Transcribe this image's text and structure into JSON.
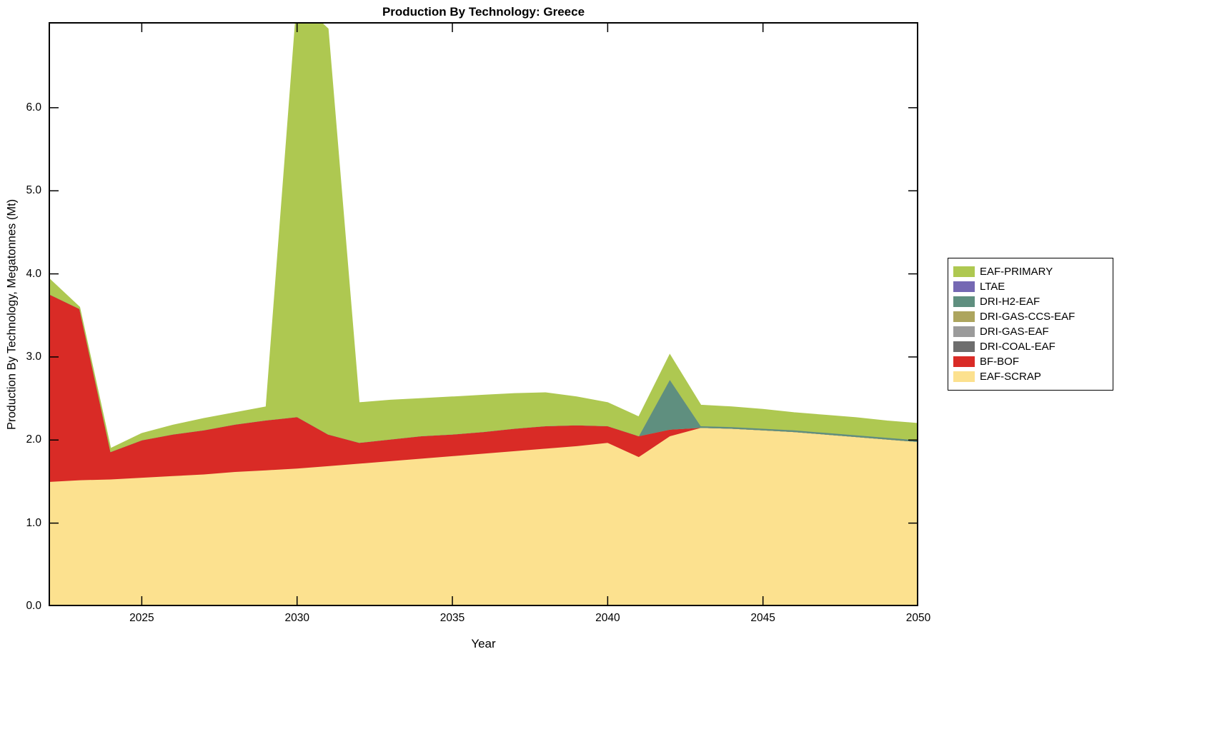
{
  "title": "Production By Technology: Greece",
  "xlabel": "Year",
  "ylabel": "Production By Technology, Megatonnes (Mt)",
  "chart_data": {
    "type": "area",
    "stacked": true,
    "title": "Production By Technology: Greece",
    "xlabel": "Year",
    "ylabel": "Production By Technology, Megatonnes (Mt)",
    "x_range": [
      2022,
      2050
    ],
    "y_range": [
      0,
      7.03
    ],
    "x_ticks": [
      2025,
      2030,
      2035,
      2040,
      2045,
      2050
    ],
    "y_ticks": [
      "0.0",
      "1.0",
      "2.0",
      "3.0",
      "4.0",
      "5.0",
      "6.0"
    ],
    "grid": false,
    "legend_position": "outside-right",
    "x": [
      2022,
      2023,
      2024,
      2025,
      2026,
      2027,
      2028,
      2029,
      2030,
      2031,
      2032,
      2033,
      2034,
      2035,
      2036,
      2037,
      2038,
      2039,
      2040,
      2041,
      2042,
      2043,
      2044,
      2045,
      2046,
      2047,
      2048,
      2049,
      2050
    ],
    "series": [
      {
        "name": "EAF-SCRAP",
        "color": "#fce18f",
        "values": [
          1.5,
          1.52,
          1.53,
          1.55,
          1.57,
          1.59,
          1.62,
          1.64,
          1.66,
          1.69,
          1.72,
          1.75,
          1.78,
          1.81,
          1.84,
          1.87,
          1.9,
          1.93,
          1.97,
          1.8,
          2.05,
          2.15,
          2.14,
          2.12,
          2.1,
          2.07,
          2.04,
          2.01,
          1.98
        ]
      },
      {
        "name": "BF-BOF",
        "color": "#d92b26",
        "values": [
          2.26,
          2.06,
          0.33,
          0.45,
          0.5,
          0.53,
          0.57,
          0.6,
          0.62,
          0.38,
          0.25,
          0.26,
          0.27,
          0.26,
          0.26,
          0.27,
          0.27,
          0.25,
          0.2,
          0.25,
          0.08,
          0,
          0,
          0,
          0,
          0,
          0,
          0,
          0
        ]
      },
      {
        "name": "DRI-COAL-EAF",
        "color": "#6e6e6e",
        "values": [
          0,
          0,
          0,
          0,
          0,
          0,
          0,
          0,
          0,
          0,
          0,
          0,
          0,
          0,
          0,
          0,
          0,
          0,
          0,
          0,
          0,
          0,
          0,
          0,
          0,
          0,
          0,
          0,
          0
        ]
      },
      {
        "name": "DRI-GAS-EAF",
        "color": "#9b9b9b",
        "values": [
          0,
          0,
          0,
          0,
          0,
          0,
          0,
          0,
          0,
          0,
          0,
          0,
          0,
          0,
          0,
          0,
          0,
          0,
          0,
          0,
          0,
          0,
          0,
          0,
          0,
          0,
          0,
          0,
          0
        ]
      },
      {
        "name": "DRI-GAS-CCS-EAF",
        "color": "#ada55e",
        "values": [
          0,
          0,
          0,
          0,
          0,
          0,
          0,
          0,
          0,
          0,
          0,
          0,
          0,
          0,
          0,
          0,
          0,
          0,
          0,
          0,
          0,
          0,
          0,
          0,
          0,
          0,
          0,
          0,
          0
        ]
      },
      {
        "name": "DRI-H2-EAF",
        "color": "#5f8f7f",
        "values": [
          0,
          0,
          0,
          0,
          0,
          0,
          0,
          0,
          0,
          0,
          0,
          0,
          0,
          0,
          0,
          0,
          0,
          0,
          0,
          0,
          0.6,
          0.02,
          0.02,
          0.02,
          0.02,
          0.02,
          0.02,
          0.02,
          0.02
        ]
      },
      {
        "name": "LTAE",
        "color": "#7568b3",
        "values": [
          0,
          0,
          0,
          0,
          0,
          0,
          0,
          0,
          0,
          0,
          0,
          0,
          0,
          0,
          0,
          0,
          0,
          0,
          0,
          0,
          0,
          0,
          0,
          0,
          0,
          0,
          0,
          0,
          0
        ]
      },
      {
        "name": "EAF-PRIMARY",
        "color": "#aec851",
        "values": [
          0.19,
          0.02,
          0.04,
          0.08,
          0.11,
          0.14,
          0.14,
          0.16,
          5.02,
          4.88,
          0.48,
          0.47,
          0.45,
          0.45,
          0.44,
          0.42,
          0.4,
          0.34,
          0.28,
          0.23,
          0.3,
          0.25,
          0.24,
          0.23,
          0.21,
          0.21,
          0.21,
          0.2,
          0.2
        ]
      }
    ],
    "legend_order": [
      "EAF-PRIMARY",
      "LTAE",
      "DRI-H2-EAF",
      "DRI-GAS-CCS-EAF",
      "DRI-GAS-EAF",
      "DRI-COAL-EAF",
      "BF-BOF",
      "EAF-SCRAP"
    ]
  }
}
